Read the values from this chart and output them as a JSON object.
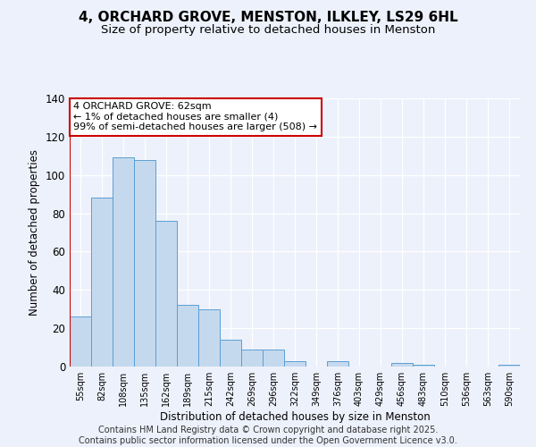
{
  "title": "4, ORCHARD GROVE, MENSTON, ILKLEY, LS29 6HL",
  "subtitle": "Size of property relative to detached houses in Menston",
  "xlabel": "Distribution of detached houses by size in Menston",
  "ylabel": "Number of detached properties",
  "categories": [
    "55sqm",
    "82sqm",
    "108sqm",
    "135sqm",
    "162sqm",
    "189sqm",
    "215sqm",
    "242sqm",
    "269sqm",
    "296sqm",
    "322sqm",
    "349sqm",
    "376sqm",
    "403sqm",
    "429sqm",
    "456sqm",
    "483sqm",
    "510sqm",
    "536sqm",
    "563sqm",
    "590sqm"
  ],
  "values": [
    26,
    88,
    109,
    108,
    76,
    32,
    30,
    14,
    9,
    9,
    3,
    0,
    3,
    0,
    0,
    2,
    1,
    0,
    0,
    0,
    1
  ],
  "bar_color": "#c5d9ee",
  "bar_edge_color": "#5a9fd4",
  "ylim": [
    0,
    140
  ],
  "yticks": [
    0,
    20,
    40,
    60,
    80,
    100,
    120,
    140
  ],
  "annotation_box_text": "4 ORCHARD GROVE: 62sqm\n← 1% of detached houses are smaller (4)\n99% of semi-detached houses are larger (508) →",
  "annotation_box_color": "#ffffff",
  "annotation_box_edge_color": "#cc0000",
  "vline_color": "#cc0000",
  "background_color": "#edf1fb",
  "footer_text": "Contains HM Land Registry data © Crown copyright and database right 2025.\nContains public sector information licensed under the Open Government Licence v3.0.",
  "title_fontsize": 11,
  "subtitle_fontsize": 9.5,
  "footer_fontsize": 7,
  "grid_color": "#d0d8e8"
}
